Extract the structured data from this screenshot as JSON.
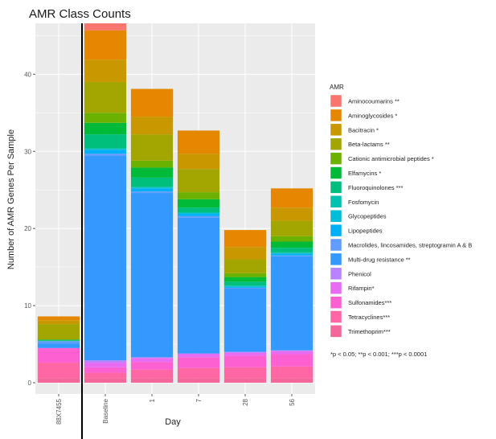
{
  "chart_data": {
    "type": "bar",
    "stacked": true,
    "title": "AMR Class Counts",
    "xlabel": "Day",
    "ylabel": "Number of AMR Genes Per Sample",
    "ylim": [
      0,
      46.5
    ],
    "yticks": [
      0,
      10,
      20,
      30,
      40
    ],
    "categories": [
      "88X7455",
      "Baseline",
      "1",
      "7",
      "28",
      "56"
    ],
    "series": [
      {
        "name": "Aminocoumarins **",
        "color": "#F8766D",
        "values": [
          0,
          0.9,
          0,
          0,
          0,
          0
        ]
      },
      {
        "name": "Aminoglycosides *",
        "color": "#E58700",
        "values": [
          0.5,
          3.8,
          3.6,
          3.0,
          2.2,
          2.5
        ]
      },
      {
        "name": "Bacitracin *",
        "color": "#C99800",
        "values": [
          0.5,
          2.9,
          2.3,
          2.0,
          1.6,
          1.7
        ]
      },
      {
        "name": "Beta-lactams **",
        "color": "#A3A500",
        "values": [
          2.0,
          4.0,
          3.4,
          3.0,
          1.8,
          2.0
        ]
      },
      {
        "name": "Cationic antimicrobial peptides *",
        "color": "#6BB100",
        "values": [
          0,
          1.3,
          0.9,
          0.9,
          0.5,
          0.7
        ]
      },
      {
        "name": "Elfamycins *",
        "color": "#00BA38",
        "values": [
          0.1,
          1.5,
          1.3,
          1.1,
          0.6,
          0.8
        ]
      },
      {
        "name": "Fluoroquinolones ***",
        "color": "#00BF7D",
        "values": [
          0.1,
          1.8,
          1.2,
          0.6,
          0.5,
          0.6
        ]
      },
      {
        "name": "Fosfomycin",
        "color": "#00C0AF",
        "values": [
          0,
          0.1,
          0.1,
          0.1,
          0.1,
          0.1
        ]
      },
      {
        "name": "Glycopeptides",
        "color": "#00BCD8",
        "values": [
          0,
          0.1,
          0.1,
          0.1,
          0.1,
          0.1
        ]
      },
      {
        "name": "Lipopeptides",
        "color": "#00B0F6",
        "values": [
          0,
          0.5,
          0.4,
          0.3,
          0.1,
          0.2
        ]
      },
      {
        "name": "Macrolides, lincosamides, streptogramin A & B",
        "color": "#619CFF",
        "values": [
          0.3,
          0.3,
          0.2,
          0.2,
          0.1,
          0.1
        ]
      },
      {
        "name": "Multi-drug resistance **",
        "color": "#3399FF",
        "values": [
          0.6,
          26.5,
          21.3,
          17.6,
          8.2,
          12.2
        ]
      },
      {
        "name": "Phenicol",
        "color": "#B983FF",
        "values": [
          0,
          0.3,
          0.1,
          0.1,
          0.1,
          0.1
        ]
      },
      {
        "name": "Rifampin*",
        "color": "#E76BF3",
        "values": [
          0,
          0.6,
          0.5,
          0.4,
          0.4,
          0.4
        ]
      },
      {
        "name": "Sulfonamides***",
        "color": "#FD61D1",
        "values": [
          1.9,
          0.7,
          1.0,
          1.4,
          1.5,
          1.6
        ]
      },
      {
        "name": "Tetracyclines***",
        "color": "#FF67A4",
        "values": [
          2.0,
          0.7,
          1.1,
          1.3,
          1.4,
          1.5
        ]
      },
      {
        "name": "Trimethoprim***",
        "color": "#F4679A",
        "values": [
          0.6,
          0.6,
          0.6,
          0.6,
          0.6,
          0.6
        ]
      }
    ],
    "legend_title": "AMR",
    "legend_position": "right",
    "footnote": "*p < 0.05; **p < 0.001; ***p < 0.0001",
    "separator_after_category": "88X7455",
    "grid": true,
    "panel_background": "#EBEBEB",
    "grid_color": "#FFFFFF"
  }
}
